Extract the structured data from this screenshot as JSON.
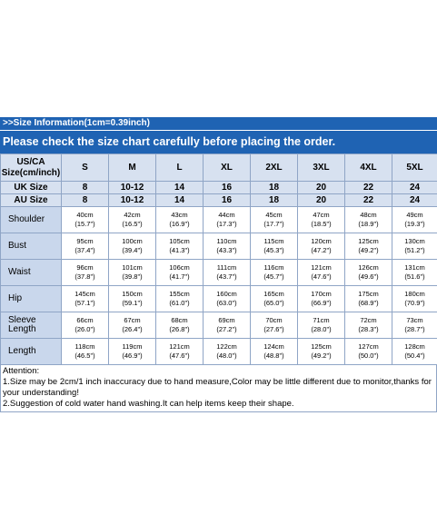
{
  "info_title": ">>Size Information(1cm=0.39inch)",
  "check_text": "Please check the size chart carefully before placing the order.",
  "header": {
    "us_label": "US/CA Size(cm/inch)",
    "us_sizes": [
      "S",
      "M",
      "L",
      "XL",
      "2XL",
      "3XL",
      "4XL",
      "5XL"
    ],
    "uk_label": "UK Size",
    "uk_sizes": [
      "8",
      "10-12",
      "14",
      "16",
      "18",
      "20",
      "22",
      "24"
    ],
    "au_label": "AU Size",
    "au_sizes": [
      "8",
      "10-12",
      "14",
      "16",
      "18",
      "20",
      "22",
      "24"
    ]
  },
  "rows": [
    {
      "label": "Shoulder",
      "cells": [
        [
          "40cm",
          "(15.7\")"
        ],
        [
          "42cm",
          "(16.5\")"
        ],
        [
          "43cm",
          "(16.9\")"
        ],
        [
          "44cm",
          "(17.3\")"
        ],
        [
          "45cm",
          "(17.7\")"
        ],
        [
          "47cm",
          "(18.5\")"
        ],
        [
          "48cm",
          "(18.9\")"
        ],
        [
          "49cm",
          "(19.3\")"
        ]
      ]
    },
    {
      "label": "Bust",
      "cells": [
        [
          "95cm",
          "(37.4\")"
        ],
        [
          "100cm",
          "(39.4\")"
        ],
        [
          "105cm",
          "(41.3\")"
        ],
        [
          "110cm",
          "(43.3\")"
        ],
        [
          "115cm",
          "(45.3\")"
        ],
        [
          "120cm",
          "(47.2\")"
        ],
        [
          "125cm",
          "(49.2\")"
        ],
        [
          "130cm",
          "(51.2\")"
        ]
      ]
    },
    {
      "label": "Waist",
      "cells": [
        [
          "96cm",
          "(37.8\")"
        ],
        [
          "101cm",
          "(39.8\")"
        ],
        [
          "106cm",
          "(41.7\")"
        ],
        [
          "111cm",
          "(43.7\")"
        ],
        [
          "116cm",
          "(45.7\")"
        ],
        [
          "121cm",
          "(47.6\")"
        ],
        [
          "126cm",
          "(49.6\")"
        ],
        [
          "131cm",
          "(51.6\")"
        ]
      ]
    },
    {
      "label": "Hip",
      "cells": [
        [
          "145cm",
          "(57.1\")"
        ],
        [
          "150cm",
          "(59.1\")"
        ],
        [
          "155cm",
          "(61.0\")"
        ],
        [
          "160cm",
          "(63.0\")"
        ],
        [
          "165cm",
          "(65.0\")"
        ],
        [
          "170cm",
          "(66.9\")"
        ],
        [
          "175cm",
          "(68.9\")"
        ],
        [
          "180cm",
          "(70.9\")"
        ]
      ]
    },
    {
      "label": "Sleeve Length",
      "cells": [
        [
          "66cm",
          "(26.0\")"
        ],
        [
          "67cm",
          "(26.4\")"
        ],
        [
          "68cm",
          "(26.8\")"
        ],
        [
          "69cm",
          "(27.2\")"
        ],
        [
          "70cm",
          "(27.6\")"
        ],
        [
          "71cm",
          "(28.0\")"
        ],
        [
          "72cm",
          "(28.3\")"
        ],
        [
          "73cm",
          "(28.7\")"
        ]
      ]
    },
    {
      "label": "Length",
      "cells": [
        [
          "118cm",
          "(46.5\")"
        ],
        [
          "119cm",
          "(46.9\")"
        ],
        [
          "121cm",
          "(47.6\")"
        ],
        [
          "122cm",
          "(48.0\")"
        ],
        [
          "124cm",
          "(48.8\")"
        ],
        [
          "125cm",
          "(49.2\")"
        ],
        [
          "127cm",
          "(50.0\")"
        ],
        [
          "128cm",
          "(50.4\")"
        ]
      ]
    }
  ],
  "attention": {
    "title": "Attention:",
    "line1": "1.Size may be 2cm/1 inch inaccuracy due to hand measure,Color may be little different due to monitor,thanks for your understanding!",
    "line2": "2.Suggestion of cold water hand washing.It can help items keep their shape."
  },
  "colors": {
    "header_blue": "#1f63b3",
    "header_cell": "#d7e1f0",
    "label_cell": "#c9d7ec",
    "border": "#8fa5c6"
  }
}
